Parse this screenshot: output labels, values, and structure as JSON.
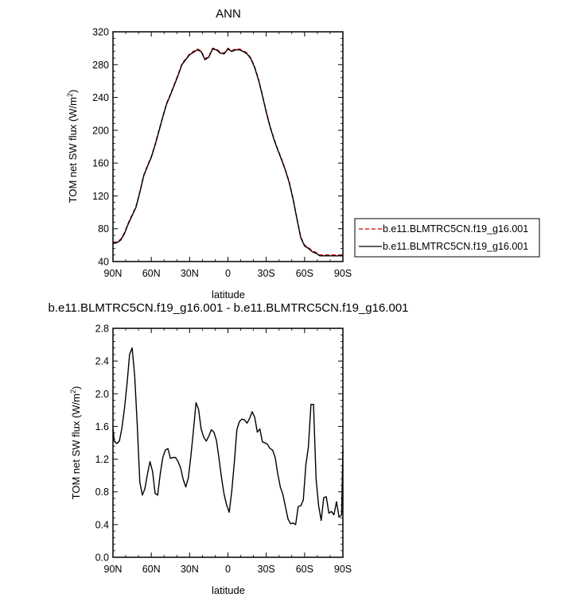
{
  "chart_data": [
    {
      "type": "line",
      "title": "ANN",
      "xlabel": "latitude",
      "ylabel": "TOM net SW flux (W/m",
      "ylabel_sup": "2",
      "ylabel_end": ")",
      "xlim": [
        90,
        -90
      ],
      "ylim": [
        40,
        320
      ],
      "x_ticks": [
        90,
        60,
        30,
        0,
        -30,
        -60,
        -90
      ],
      "x_tick_labels": [
        "90N",
        "60N",
        "30N",
        "0",
        "30S",
        "60S",
        "90S"
      ],
      "y_ticks": [
        40,
        80,
        120,
        160,
        200,
        240,
        280,
        320
      ],
      "y_tick_labels": [
        "40",
        "80",
        "120",
        "160",
        "200",
        "240",
        "280",
        "320"
      ],
      "legend_position": "right",
      "series": [
        {
          "name": "b.e11.BLMTRC5CN.f19_g16.001",
          "color": "#cc0000",
          "dash": "dashed",
          "x": [
            90,
            87,
            84,
            81,
            78,
            75,
            72,
            69,
            66,
            63,
            60,
            57,
            54,
            51,
            48,
            45,
            42,
            39,
            36,
            33,
            30,
            27,
            24,
            21,
            18,
            15,
            12,
            9,
            6,
            3,
            0,
            -3,
            -6,
            -9,
            -12,
            -15,
            -18,
            -21,
            -24,
            -27,
            -30,
            -33,
            -36,
            -39,
            -42,
            -45,
            -48,
            -51,
            -54,
            -57,
            -60,
            -63,
            -66,
            -69,
            -72,
            -75,
            -78,
            -81,
            -84,
            -87,
            -90
          ],
          "y": [
            63,
            64,
            67,
            75,
            87,
            97,
            107,
            125,
            145,
            157,
            168,
            183,
            200,
            217,
            233,
            244,
            256,
            268,
            281,
            287,
            293,
            296,
            299,
            297,
            287,
            290,
            300,
            299,
            295,
            294,
            300,
            297,
            299,
            299,
            297,
            294,
            288,
            277,
            262,
            243,
            223,
            205,
            190,
            177,
            165,
            152,
            137,
            117,
            93,
            70,
            60,
            57,
            53,
            51,
            48,
            48,
            48,
            48,
            48,
            48,
            48
          ]
        },
        {
          "name": "b.e11.BLMTRC5CN.f19_g16.001",
          "color": "#000000",
          "dash": "solid",
          "x": [
            90,
            87,
            84,
            81,
            78,
            75,
            72,
            69,
            66,
            63,
            60,
            57,
            54,
            51,
            48,
            45,
            42,
            39,
            36,
            33,
            30,
            27,
            24,
            21,
            18,
            15,
            12,
            9,
            6,
            3,
            0,
            -3,
            -6,
            -9,
            -12,
            -15,
            -18,
            -21,
            -24,
            -27,
            -30,
            -33,
            -36,
            -39,
            -42,
            -45,
            -48,
            -51,
            -54,
            -57,
            -60,
            -63,
            -66,
            -69,
            -72,
            -75,
            -78,
            -81,
            -84,
            -87,
            -90
          ],
          "y": [
            62,
            63,
            66,
            74,
            86,
            96,
            106,
            124,
            144,
            156,
            167,
            182,
            199,
            216,
            232,
            243,
            255,
            267,
            280,
            286,
            292,
            295,
            298,
            296,
            286,
            289,
            299,
            298,
            294,
            293,
            299,
            296,
            298,
            298,
            296,
            293,
            287,
            276,
            261,
            242,
            222,
            204,
            189,
            176,
            164,
            151,
            136,
            116,
            92,
            69,
            59,
            56,
            52,
            50,
            47,
            47,
            47,
            47,
            47,
            47,
            47
          ]
        }
      ]
    },
    {
      "type": "line",
      "title": "b.e11.BLMTRC5CN.f19_g16.001 - b.e11.BLMTRC5CN.f19_g16.001",
      "xlabel": "latitude",
      "ylabel": "TOM net SW flux (W/m",
      "ylabel_sup": "2",
      "ylabel_end": ")",
      "xlim": [
        90,
        -90
      ],
      "ylim": [
        0.0,
        2.8
      ],
      "x_ticks": [
        90,
        60,
        30,
        0,
        -30,
        -60,
        -90
      ],
      "x_tick_labels": [
        "90N",
        "60N",
        "30N",
        "0",
        "30S",
        "60S",
        "90S"
      ],
      "y_ticks": [
        0.0,
        0.4,
        0.8,
        1.2,
        1.6,
        2.0,
        2.4,
        2.8
      ],
      "y_tick_labels": [
        "0.0",
        "0.4",
        "0.8",
        "1.2",
        "1.6",
        "2.0",
        "2.4",
        "2.8"
      ],
      "series": [
        {
          "color": "#000000",
          "dash": "solid",
          "x": [
            90,
            89,
            87,
            85,
            83,
            81,
            79,
            77,
            75,
            73,
            71,
            69,
            67,
            65,
            63,
            61,
            59,
            57,
            55,
            53,
            51,
            49,
            47,
            45,
            43,
            41,
            39,
            37,
            35,
            33,
            31,
            29,
            27,
            25,
            23,
            21,
            19,
            17,
            15,
            13,
            11,
            9,
            7,
            5,
            3,
            1,
            -1,
            -3,
            -5,
            -7,
            -9,
            -11,
            -13,
            -15,
            -17,
            -19,
            -21,
            -23,
            -25,
            -27,
            -29,
            -31,
            -33,
            -35,
            -37,
            -39,
            -41,
            -43,
            -45,
            -47,
            -49,
            -51,
            -53,
            -55,
            -57,
            -59,
            -61,
            -63,
            -65,
            -67,
            -69,
            -71,
            -73,
            -75,
            -77,
            -79,
            -81,
            -83,
            -85,
            -87,
            -89,
            -90
          ],
          "y": [
            1.58,
            1.42,
            1.39,
            1.42,
            1.58,
            1.82,
            2.12,
            2.48,
            2.56,
            2.22,
            1.62,
            0.92,
            0.76,
            0.84,
            1.02,
            1.17,
            1.05,
            0.78,
            0.76,
            1.02,
            1.22,
            1.31,
            1.33,
            1.21,
            1.22,
            1.22,
            1.17,
            1.09,
            0.95,
            0.86,
            0.97,
            1.24,
            1.55,
            1.89,
            1.81,
            1.57,
            1.47,
            1.42,
            1.48,
            1.56,
            1.53,
            1.43,
            1.21,
            0.97,
            0.77,
            0.64,
            0.55,
            0.81,
            1.16,
            1.56,
            1.66,
            1.69,
            1.68,
            1.64,
            1.7,
            1.78,
            1.71,
            1.53,
            1.57,
            1.41,
            1.4,
            1.38,
            1.33,
            1.31,
            1.22,
            1.02,
            0.86,
            0.77,
            0.62,
            0.47,
            0.41,
            0.42,
            0.4,
            0.62,
            0.63,
            0.7,
            1.13,
            1.35,
            1.87,
            1.87,
            0.96,
            0.63,
            0.45,
            0.73,
            0.74,
            0.54,
            0.56,
            0.52,
            0.68,
            0.49,
            0.52,
            1.32
          ]
        }
      ]
    }
  ]
}
